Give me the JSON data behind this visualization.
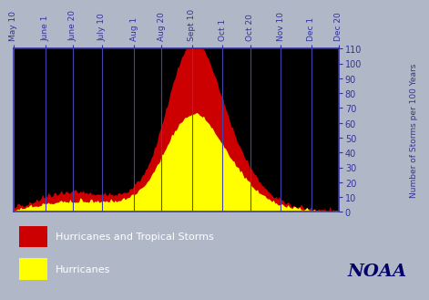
{
  "outer_bg": "#b0b8c8",
  "plot_area_bg": "#000000",
  "tick_label_dates": [
    "May 10",
    "June 1",
    "June 20",
    "July 10",
    "Aug 1",
    "Aug 20",
    "Sept 10",
    "Oct 1",
    "Oct 20",
    "Nov 10",
    "Dec 1",
    "Dec 20"
  ],
  "ylabel": "Number of Storms per 100 Years",
  "ylim": [
    0,
    110
  ],
  "yticks": [
    0,
    10,
    20,
    30,
    40,
    50,
    60,
    70,
    80,
    90,
    100,
    110
  ],
  "legend_labels": [
    "Hurricanes and Tropical Storms",
    "Hurricanes"
  ],
  "legend_colors": [
    "#cc0000",
    "#ffff00"
  ],
  "noaa_label": "NOAA",
  "vline_color": "#4444aa",
  "axis_color": "#3333aa",
  "tick_color": "#333399",
  "label_color": "#333399",
  "tick_days": [
    130,
    152,
    171,
    191,
    213,
    232,
    253,
    274,
    293,
    314,
    335,
    354
  ]
}
